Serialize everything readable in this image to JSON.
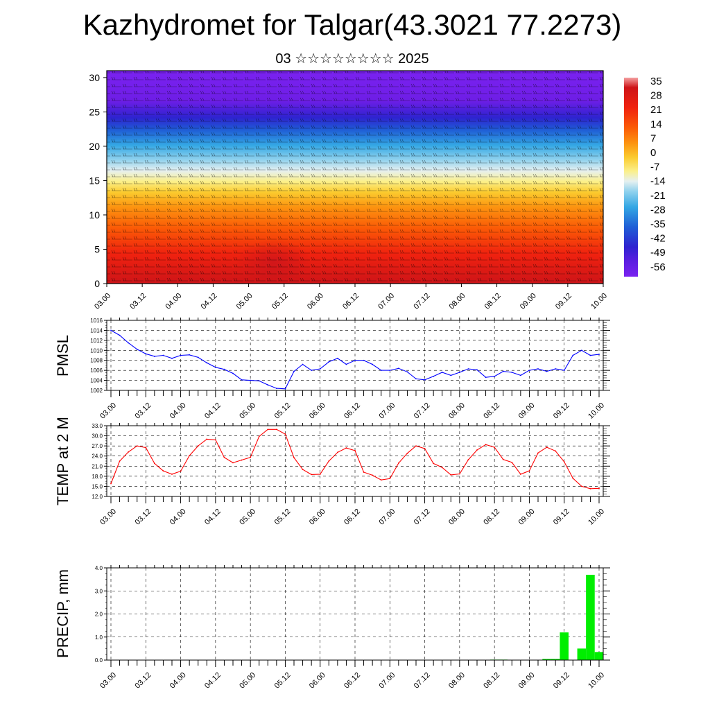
{
  "title": "Kazhydromet for Talgar(43.3021 77.2273)",
  "subtitle": "03 ☆☆☆☆☆☆☆☆ 2025",
  "time_labels": [
    "03.00",
    "03.12",
    "04.00",
    "04.12",
    "05.00",
    "05.12",
    "06.00",
    "06.12",
    "07.00",
    "07.12",
    "08.00",
    "08.12",
    "09.00",
    "09.12",
    "10.00"
  ],
  "colors": {
    "pmsl_line": "#0000ff",
    "temp_line": "#ff0000",
    "precip_bar": "#00ee00"
  },
  "chart_data": [
    {
      "type": "heatmap",
      "description_panel": "upper",
      "y_ticks": [
        0,
        5,
        10,
        15,
        20,
        25,
        30
      ],
      "ylim": [
        0,
        31
      ],
      "colorbar_labels": [
        "35",
        "28",
        "21",
        "14",
        "7",
        "0",
        "-7",
        "-14",
        "-21",
        "-28",
        "-35",
        "-42",
        "-49",
        "-56"
      ],
      "colorbar_range": [
        -60,
        38
      ]
    },
    {
      "type": "line",
      "ylabel": "PMSL",
      "ylim": [
        1002,
        1016
      ],
      "y_ticks": [
        "1002",
        "1004",
        "1006",
        "1008",
        "1010",
        "1012",
        "1014",
        "1016"
      ],
      "x_step_hours": 3,
      "values": [
        1014.0,
        1013.0,
        1011.5,
        1010.2,
        1009.3,
        1008.8,
        1009.0,
        1008.4,
        1009.0,
        1009.1,
        1008.6,
        1007.5,
        1006.6,
        1006.2,
        1005.4,
        1004.1,
        1004.0,
        1003.9,
        1003.1,
        1002.4,
        1002.3,
        1005.8,
        1007.2,
        1006.0,
        1006.3,
        1007.7,
        1008.4,
        1007.2,
        1008.0,
        1008.0,
        1007.2,
        1006.0,
        1006.0,
        1006.4,
        1005.7,
        1004.3,
        1004.1,
        1004.8,
        1005.6,
        1005.0,
        1005.6,
        1006.3,
        1006.1,
        1004.6,
        1004.8,
        1005.8,
        1005.6,
        1005.0,
        1006.0,
        1006.3,
        1005.8,
        1006.3,
        1006.0,
        1009.0,
        1010.0,
        1009.0,
        1009.2
      ]
    },
    {
      "type": "line",
      "ylabel": "TEMP at 2 M",
      "ylim": [
        12.0,
        33.0
      ],
      "y_ticks": [
        "12.0",
        "15.0",
        "18.0",
        "21.0",
        "24.0",
        "27.0",
        "30.0",
        "33.0"
      ],
      "x_step_hours": 3,
      "values": [
        15.8,
        22.5,
        25.2,
        27.0,
        26.5,
        21.8,
        19.6,
        18.6,
        19.5,
        24.1,
        27.0,
        29.0,
        28.8,
        23.6,
        22.0,
        22.8,
        23.6,
        29.8,
        31.9,
        31.9,
        30.5,
        23.5,
        20.0,
        18.5,
        18.6,
        22.5,
        25.1,
        26.4,
        25.6,
        19.2,
        18.3,
        16.9,
        17.3,
        21.9,
        24.8,
        27.0,
        26.2,
        21.8,
        20.6,
        18.4,
        18.7,
        22.9,
        25.8,
        27.4,
        26.6,
        23.0,
        22.1,
        18.6,
        19.6,
        24.9,
        26.6,
        25.5,
        22.3,
        17.4,
        15.0,
        14.3,
        14.4
      ]
    },
    {
      "type": "bar",
      "ylabel": "PRECIP, mm",
      "ylim": [
        0.0,
        4.0
      ],
      "y_ticks": [
        "0.0",
        "1.0",
        "2.0",
        "3.0",
        "4.0"
      ],
      "x_step_hours": 3,
      "values": [
        0,
        0,
        0,
        0,
        0,
        0,
        0,
        0,
        0,
        0,
        0,
        0,
        0,
        0,
        0,
        0,
        0,
        0,
        0,
        0,
        0,
        0,
        0,
        0,
        0,
        0,
        0,
        0,
        0,
        0,
        0,
        0,
        0,
        0,
        0,
        0,
        0,
        0,
        0,
        0,
        0,
        0,
        0,
        0,
        0.02,
        0.02,
        0,
        0,
        0,
        0,
        0.05,
        0.05,
        1.2,
        0,
        0.5,
        3.7,
        0.35
      ]
    }
  ]
}
